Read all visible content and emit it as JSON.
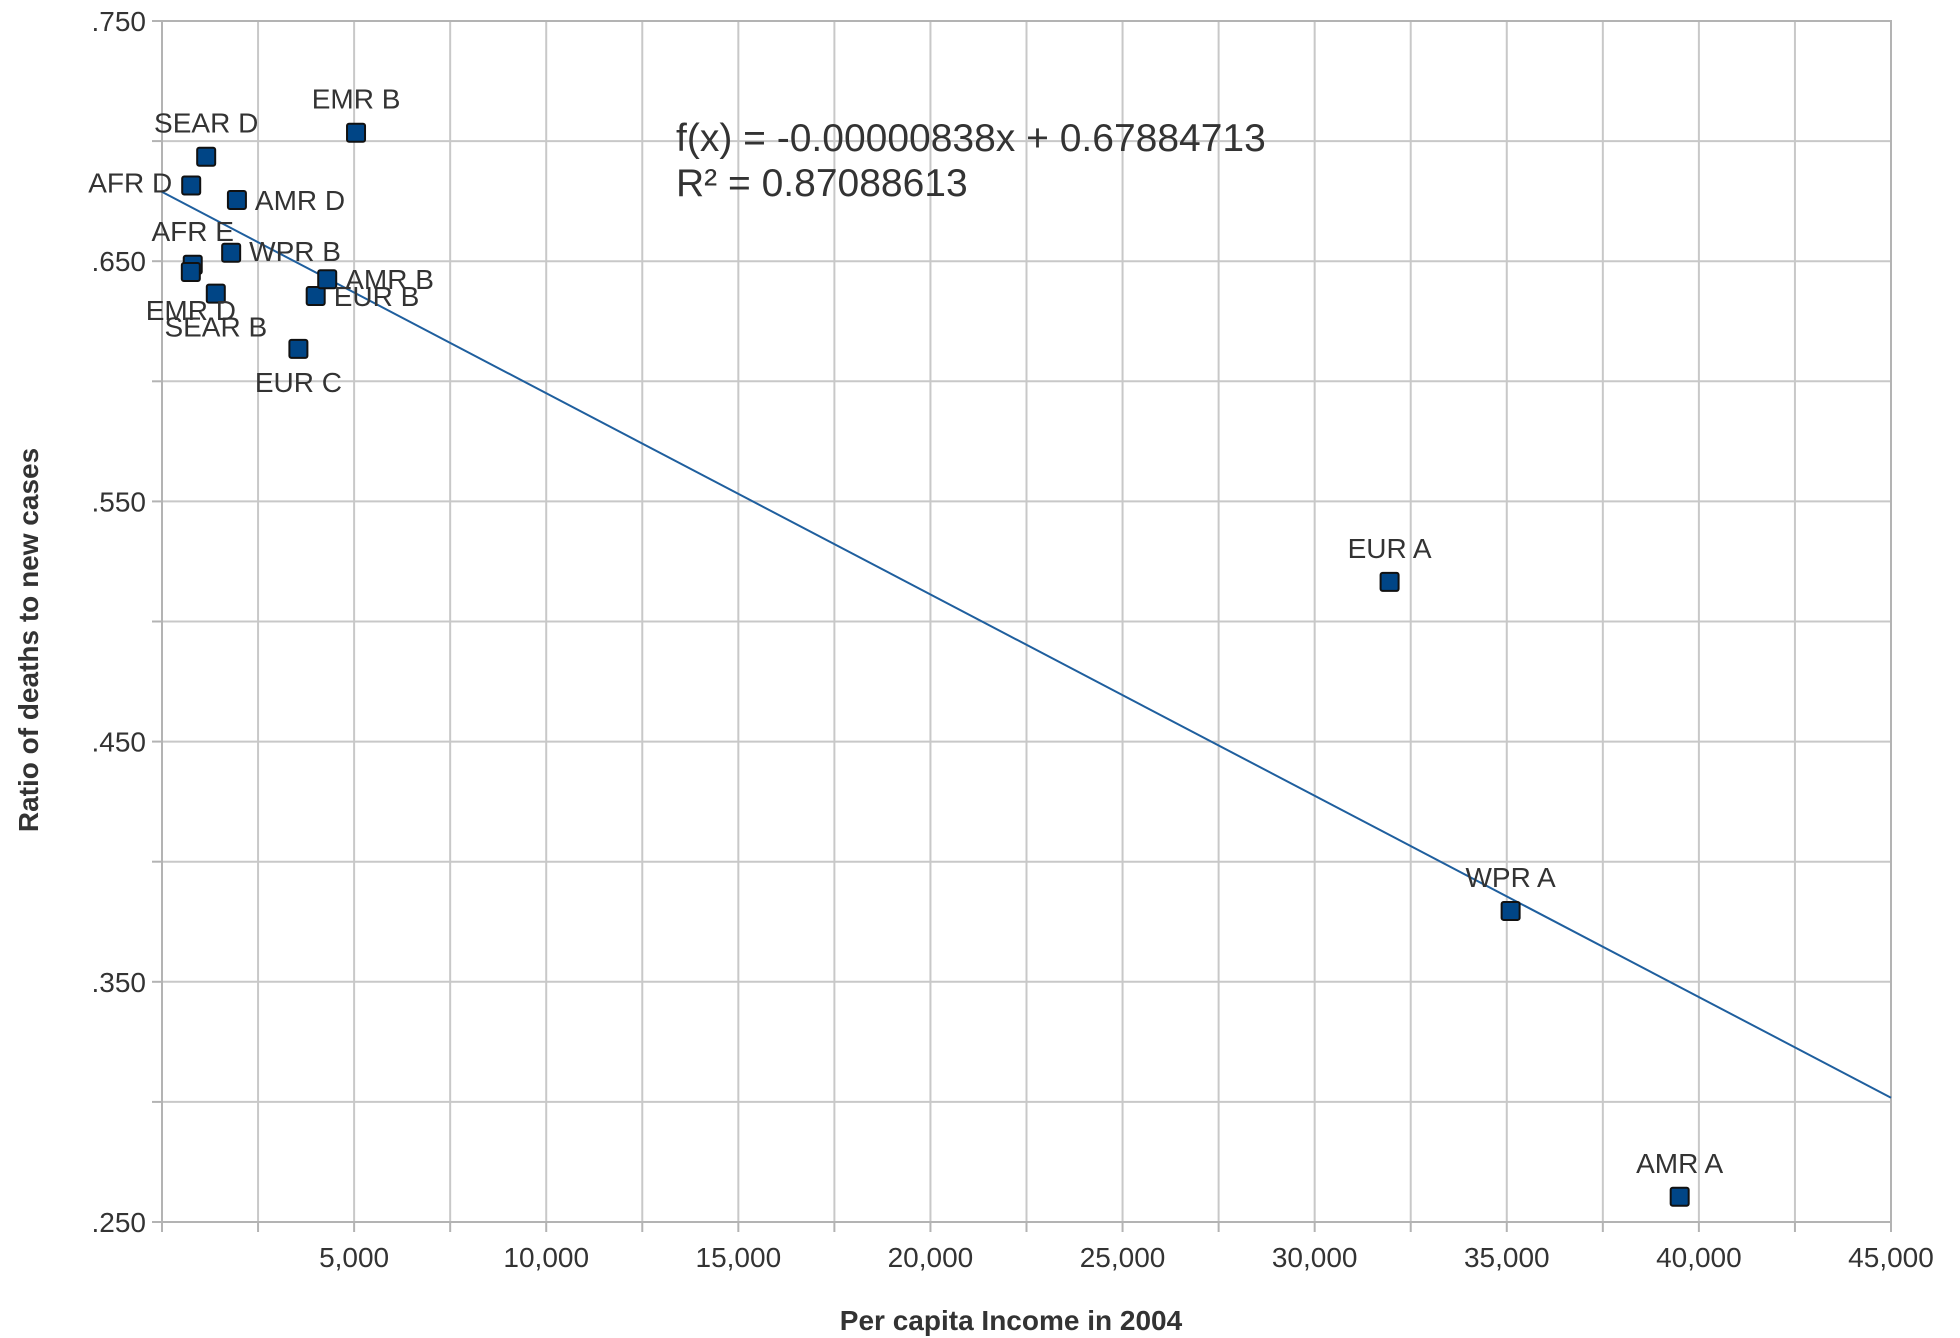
{
  "chart_data": {
    "type": "scatter",
    "title": "",
    "xlabel": "Per capita Income in 2004",
    "ylabel": "Ratio of deaths to new cases",
    "xlim": [
      0,
      45000
    ],
    "ylim": [
      0.25,
      0.75
    ],
    "x_ticks": [
      5000,
      10000,
      15000,
      20000,
      25000,
      30000,
      35000,
      40000,
      45000
    ],
    "x_tick_labels": [
      "5,000",
      "10,000",
      "15,000",
      "20,000",
      "25,000",
      "30,000",
      "35,000",
      "40,000",
      "45,000"
    ],
    "y_ticks": [
      0.25,
      0.35,
      0.45,
      0.55,
      0.65,
      0.75
    ],
    "y_tick_labels": [
      ".250",
      ".350",
      ".450",
      ".550",
      ".650",
      ".750"
    ],
    "x_grid_step": 2500,
    "y_grid_step": 0.05,
    "grid": true,
    "legend": "none",
    "marker_color": "#004586",
    "marker_edge_color": "#111111",
    "trendline_color": "#1f5f9e",
    "points": [
      {
        "label": "AFR D",
        "x": 760,
        "y": 0.6815
      },
      {
        "label": "AFR E",
        "x": 800,
        "y": 0.6485
      },
      {
        "label": "SEAR D",
        "x": 1150,
        "y": 0.6935
      },
      {
        "label": "EMR D",
        "x": 750,
        "y": 0.6455
      },
      {
        "label": "SEAR B",
        "x": 1400,
        "y": 0.6365
      },
      {
        "label": "WPR B",
        "x": 1800,
        "y": 0.6535
      },
      {
        "label": "AMR D",
        "x": 1950,
        "y": 0.6755
      },
      {
        "label": "EUR C",
        "x": 3550,
        "y": 0.6135
      },
      {
        "label": "EUR B",
        "x": 4000,
        "y": 0.6355
      },
      {
        "label": "AMR B",
        "x": 4300,
        "y": 0.6425
      },
      {
        "label": "EMR B",
        "x": 5050,
        "y": 0.7035
      },
      {
        "label": "EUR A",
        "x": 31950,
        "y": 0.5165
      },
      {
        "label": "WPR A",
        "x": 35100,
        "y": 0.3795
      },
      {
        "label": "AMR A",
        "x": 39500,
        "y": 0.2605
      }
    ],
    "trendline": {
      "slope": -8.38e-06,
      "intercept": 0.67884713,
      "equation": "f(x) = -0.00000838x + 0.67884713",
      "r_squared": "R² = 0.87088613"
    }
  }
}
